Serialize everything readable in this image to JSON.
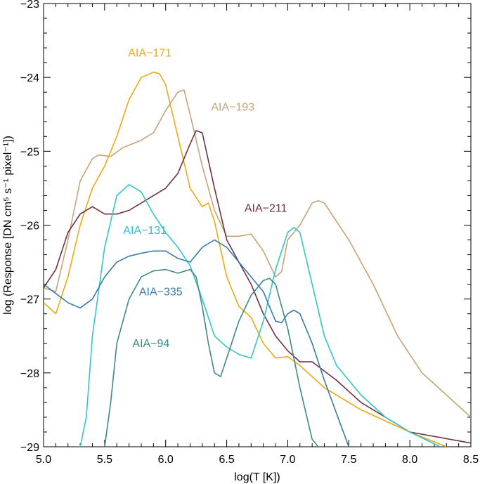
{
  "chart_data": {
    "type": "line",
    "xlabel": "log(T [K])",
    "ylabel": "log (Response [DN cm⁵ s⁻¹ pixel⁻¹])",
    "xlim": [
      5.0,
      8.5
    ],
    "ylim": [
      -29,
      -23
    ],
    "x_ticks": [
      5.0,
      5.5,
      6.0,
      6.5,
      7.0,
      7.5,
      8.0,
      8.5
    ],
    "x_tick_labels": [
      "5.0",
      "5.5",
      "6.0",
      "6.5",
      "7.0",
      "7.5",
      "8.0",
      "8.5"
    ],
    "y_ticks": [
      -29,
      -28,
      -27,
      -26,
      -25,
      -24,
      -23
    ],
    "y_tick_labels": [
      "−29",
      "−28",
      "−27",
      "−26",
      "−25",
      "−24",
      "−23"
    ],
    "grid": false,
    "series": [
      {
        "name": "AIA−171",
        "color": "#EBAA12",
        "label_pos": [
          5.87,
          -23.72
        ],
        "points": [
          [
            5.0,
            -27.05
          ],
          [
            5.1,
            -27.2
          ],
          [
            5.2,
            -26.7
          ],
          [
            5.3,
            -26.0
          ],
          [
            5.4,
            -25.5
          ],
          [
            5.5,
            -25.2
          ],
          [
            5.6,
            -24.8
          ],
          [
            5.7,
            -24.3
          ],
          [
            5.8,
            -24.0
          ],
          [
            5.9,
            -23.93
          ],
          [
            5.95,
            -23.95
          ],
          [
            6.0,
            -24.1
          ],
          [
            6.1,
            -24.8
          ],
          [
            6.2,
            -25.5
          ],
          [
            6.3,
            -25.75
          ],
          [
            6.35,
            -25.7
          ],
          [
            6.4,
            -25.95
          ],
          [
            6.5,
            -26.7
          ],
          [
            6.6,
            -27.1
          ],
          [
            6.7,
            -27.25
          ],
          [
            6.8,
            -27.6
          ],
          [
            6.9,
            -27.8
          ],
          [
            7.0,
            -27.78
          ],
          [
            7.1,
            -27.9
          ],
          [
            7.3,
            -28.2
          ],
          [
            7.6,
            -28.5
          ],
          [
            8.0,
            -28.8
          ],
          [
            8.3,
            -29.0
          ]
        ]
      },
      {
        "name": "AIA−193",
        "color": "#C8A277",
        "label_pos": [
          6.55,
          -24.45
        ],
        "points": [
          [
            5.0,
            -26.85
          ],
          [
            5.1,
            -26.9
          ],
          [
            5.2,
            -26.2
          ],
          [
            5.3,
            -25.4
          ],
          [
            5.4,
            -25.1
          ],
          [
            5.45,
            -25.05
          ],
          [
            5.55,
            -25.07
          ],
          [
            5.65,
            -24.95
          ],
          [
            5.8,
            -24.85
          ],
          [
            5.9,
            -24.75
          ],
          [
            6.0,
            -24.45
          ],
          [
            6.1,
            -24.2
          ],
          [
            6.15,
            -24.17
          ],
          [
            6.2,
            -24.5
          ],
          [
            6.3,
            -25.2
          ],
          [
            6.4,
            -25.8
          ],
          [
            6.5,
            -26.15
          ],
          [
            6.6,
            -26.15
          ],
          [
            6.7,
            -26.12
          ],
          [
            6.8,
            -26.35
          ],
          [
            6.9,
            -26.7
          ],
          [
            6.95,
            -26.63
          ],
          [
            7.0,
            -26.2
          ],
          [
            7.1,
            -26.0
          ],
          [
            7.2,
            -25.7
          ],
          [
            7.25,
            -25.67
          ],
          [
            7.3,
            -25.7
          ],
          [
            7.5,
            -26.2
          ],
          [
            7.7,
            -26.8
          ],
          [
            7.9,
            -27.5
          ],
          [
            8.1,
            -28.0
          ],
          [
            8.3,
            -28.3
          ],
          [
            8.5,
            -28.6
          ]
        ]
      },
      {
        "name": "AIA−211",
        "color": "#712F46",
        "label_pos": [
          6.82,
          -25.82
        ],
        "points": [
          [
            5.0,
            -26.85
          ],
          [
            5.1,
            -26.6
          ],
          [
            5.2,
            -26.1
          ],
          [
            5.3,
            -25.85
          ],
          [
            5.4,
            -25.75
          ],
          [
            5.5,
            -25.85
          ],
          [
            5.6,
            -25.85
          ],
          [
            5.7,
            -25.8
          ],
          [
            5.85,
            -25.65
          ],
          [
            6.0,
            -25.5
          ],
          [
            6.1,
            -25.3
          ],
          [
            6.2,
            -24.9
          ],
          [
            6.25,
            -24.72
          ],
          [
            6.3,
            -24.75
          ],
          [
            6.4,
            -25.5
          ],
          [
            6.5,
            -26.2
          ],
          [
            6.6,
            -26.5
          ],
          [
            6.7,
            -26.8
          ],
          [
            6.8,
            -27.2
          ],
          [
            6.9,
            -27.5
          ],
          [
            7.0,
            -27.7
          ],
          [
            7.1,
            -27.85
          ],
          [
            7.2,
            -27.85
          ],
          [
            7.4,
            -28.1
          ],
          [
            7.6,
            -28.4
          ],
          [
            7.8,
            -28.6
          ],
          [
            8.0,
            -28.8
          ],
          [
            8.5,
            -28.95
          ]
        ]
      },
      {
        "name": "AIA−131",
        "color": "#2EC6CC",
        "label_pos": [
          5.83,
          -26.12
        ],
        "points": [
          [
            5.3,
            -29.0
          ],
          [
            5.35,
            -28.6
          ],
          [
            5.4,
            -27.5
          ],
          [
            5.5,
            -26.3
          ],
          [
            5.6,
            -25.6
          ],
          [
            5.7,
            -25.45
          ],
          [
            5.8,
            -25.55
          ],
          [
            5.9,
            -25.85
          ],
          [
            6.0,
            -26.1
          ],
          [
            6.1,
            -26.3
          ],
          [
            6.2,
            -26.55
          ],
          [
            6.3,
            -27.0
          ],
          [
            6.4,
            -27.5
          ],
          [
            6.5,
            -27.65
          ],
          [
            6.6,
            -27.75
          ],
          [
            6.7,
            -27.8
          ],
          [
            6.8,
            -27.3
          ],
          [
            6.9,
            -26.6
          ],
          [
            7.0,
            -26.1
          ],
          [
            7.05,
            -26.03
          ],
          [
            7.1,
            -26.1
          ],
          [
            7.2,
            -26.8
          ],
          [
            7.3,
            -27.5
          ],
          [
            7.4,
            -27.9
          ],
          [
            7.6,
            -28.3
          ],
          [
            7.8,
            -28.6
          ],
          [
            8.0,
            -28.8
          ],
          [
            8.25,
            -29.0
          ]
        ]
      },
      {
        "name": "AIA−335",
        "color": "#387AAA",
        "label_pos": [
          5.96,
          -26.95
        ],
        "points": [
          [
            5.0,
            -26.8
          ],
          [
            5.2,
            -27.05
          ],
          [
            5.3,
            -27.12
          ],
          [
            5.4,
            -27.0
          ],
          [
            5.5,
            -26.7
          ],
          [
            5.6,
            -26.5
          ],
          [
            5.7,
            -26.42
          ],
          [
            5.8,
            -26.38
          ],
          [
            5.9,
            -26.35
          ],
          [
            6.0,
            -26.35
          ],
          [
            6.1,
            -26.45
          ],
          [
            6.2,
            -26.5
          ],
          [
            6.3,
            -26.3
          ],
          [
            6.4,
            -26.2
          ],
          [
            6.5,
            -26.3
          ],
          [
            6.6,
            -26.5
          ],
          [
            6.7,
            -26.7
          ],
          [
            6.8,
            -26.9
          ],
          [
            6.9,
            -27.3
          ],
          [
            6.95,
            -27.32
          ],
          [
            7.0,
            -27.2
          ],
          [
            7.05,
            -27.15
          ],
          [
            7.1,
            -27.2
          ],
          [
            7.2,
            -27.6
          ],
          [
            7.3,
            -28.1
          ],
          [
            7.4,
            -28.55
          ],
          [
            7.5,
            -29.0
          ]
        ]
      },
      {
        "name": "AIA−94",
        "color": "#3C8A86",
        "label_pos": [
          5.88,
          -27.65
        ],
        "points": [
          [
            5.5,
            -29.0
          ],
          [
            5.55,
            -28.4
          ],
          [
            5.6,
            -27.6
          ],
          [
            5.7,
            -27.0
          ],
          [
            5.8,
            -26.7
          ],
          [
            5.9,
            -26.62
          ],
          [
            6.0,
            -26.6
          ],
          [
            6.1,
            -26.65
          ],
          [
            6.2,
            -26.6
          ],
          [
            6.25,
            -26.7
          ],
          [
            6.3,
            -27.1
          ],
          [
            6.35,
            -27.6
          ],
          [
            6.4,
            -28.0
          ],
          [
            6.45,
            -28.05
          ],
          [
            6.5,
            -27.8
          ],
          [
            6.6,
            -27.3
          ],
          [
            6.7,
            -26.95
          ],
          [
            6.8,
            -26.75
          ],
          [
            6.85,
            -26.72
          ],
          [
            6.9,
            -26.8
          ],
          [
            7.0,
            -27.4
          ],
          [
            7.1,
            -28.2
          ],
          [
            7.2,
            -28.9
          ],
          [
            7.25,
            -29.0
          ]
        ]
      }
    ]
  }
}
